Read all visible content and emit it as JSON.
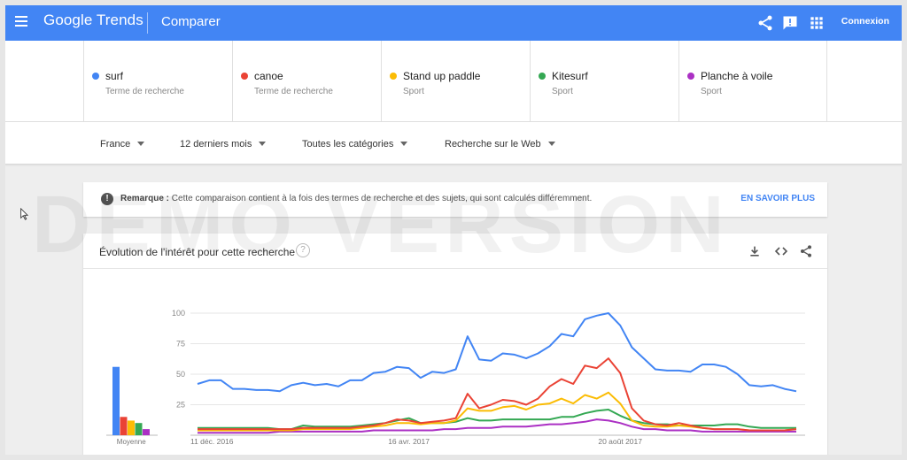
{
  "appbar": {
    "logo": "Google Trends",
    "title": "Comparer",
    "connexion": "Connexion",
    "icons": [
      "menu-icon",
      "share-icon",
      "feedback-icon",
      "apps-icon"
    ]
  },
  "terms": [
    {
      "name": "surf",
      "type": "Terme de recherche",
      "color": "#4285f4"
    },
    {
      "name": "canoe",
      "type": "Terme de recherche",
      "color": "#ea4335"
    },
    {
      "name": "Stand up paddle",
      "type": "Sport",
      "color": "#fbbc04"
    },
    {
      "name": "Kitesurf",
      "type": "Sport",
      "color": "#34a853"
    },
    {
      "name": "Planche à voile",
      "type": "Sport",
      "color": "#ab30c4"
    }
  ],
  "filters": {
    "region": "France",
    "period": "12 derniers mois",
    "category": "Toutes les catégories",
    "source": "Recherche sur le Web"
  },
  "watermark": "DEMO VERSION",
  "notice": {
    "label": "Remarque :",
    "text": "Cette comparaison contient à la fois des termes de recherche et des sujets, qui sont calculés différemment.",
    "link": "EN SAVOIR PLUS"
  },
  "card": {
    "title": "Évolution de l'intérêt pour cette recherche",
    "icons": [
      "help-icon",
      "download-icon",
      "embed-icon",
      "share-icon"
    ]
  },
  "chart_data": {
    "type": "line",
    "yticks": [
      25,
      50,
      75,
      100
    ],
    "ylim": [
      0,
      100
    ],
    "xtick_labels": [
      "11 déc. 2016",
      "16 avr. 2017",
      "20 août 2017"
    ],
    "xtick_index": [
      0,
      18,
      36
    ],
    "averages_label": "Moyenne",
    "averages": [
      {
        "name": "surf",
        "value": 56
      },
      {
        "name": "canoe",
        "value": 15
      },
      {
        "name": "Stand up paddle",
        "value": 12
      },
      {
        "name": "Kitesurf",
        "value": 10
      },
      {
        "name": "Planche à voile",
        "value": 5
      }
    ],
    "series": [
      {
        "name": "surf",
        "color": "#4285f4",
        "values": [
          42,
          45,
          45,
          38,
          38,
          37,
          37,
          36,
          41,
          43,
          41,
          42,
          40,
          45,
          45,
          51,
          52,
          56,
          55,
          47,
          52,
          51,
          54,
          81,
          62,
          61,
          67,
          66,
          63,
          67,
          73,
          83,
          81,
          95,
          98,
          100,
          90,
          72,
          63,
          54,
          53,
          53,
          52,
          58,
          58,
          56,
          50,
          41,
          40,
          41,
          38,
          36
        ]
      },
      {
        "name": "canoe",
        "color": "#ea4335",
        "values": [
          5,
          5,
          5,
          5,
          5,
          5,
          5,
          5,
          5,
          6,
          6,
          6,
          6,
          6,
          7,
          8,
          10,
          13,
          12,
          10,
          11,
          12,
          14,
          34,
          22,
          25,
          29,
          28,
          25,
          30,
          40,
          46,
          42,
          57,
          55,
          63,
          51,
          22,
          12,
          9,
          8,
          10,
          8,
          6,
          5,
          5,
          5,
          4,
          4,
          4,
          4,
          5
        ]
      },
      {
        "name": "Stand up paddle",
        "color": "#fbbc04",
        "values": [
          4,
          4,
          4,
          4,
          4,
          4,
          4,
          4,
          4,
          5,
          5,
          5,
          5,
          5,
          6,
          7,
          8,
          10,
          10,
          9,
          10,
          10,
          12,
          22,
          20,
          20,
          23,
          24,
          21,
          25,
          26,
          30,
          26,
          33,
          30,
          35,
          26,
          12,
          8,
          7,
          7,
          8,
          7,
          6,
          5,
          5,
          5,
          4,
          4,
          4,
          4,
          5
        ]
      },
      {
        "name": "Kitesurf",
        "color": "#34a853",
        "values": [
          6,
          6,
          6,
          6,
          6,
          6,
          6,
          5,
          5,
          8,
          7,
          7,
          7,
          7,
          8,
          9,
          10,
          12,
          14,
          10,
          10,
          10,
          11,
          14,
          12,
          12,
          13,
          13,
          13,
          13,
          13,
          15,
          15,
          18,
          20,
          21,
          16,
          12,
          10,
          9,
          9,
          8,
          8,
          8,
          8,
          9,
          9,
          7,
          6,
          6,
          6,
          6
        ]
      },
      {
        "name": "Planche à voile",
        "color": "#ab30c4",
        "values": [
          2,
          2,
          2,
          2,
          2,
          2,
          2,
          3,
          3,
          3,
          3,
          3,
          3,
          3,
          3,
          4,
          4,
          4,
          4,
          4,
          4,
          5,
          5,
          6,
          6,
          6,
          7,
          7,
          7,
          8,
          9,
          9,
          10,
          11,
          13,
          12,
          10,
          7,
          5,
          5,
          4,
          4,
          4,
          3,
          3,
          3,
          3,
          3,
          3,
          3,
          3,
          3
        ]
      }
    ]
  }
}
